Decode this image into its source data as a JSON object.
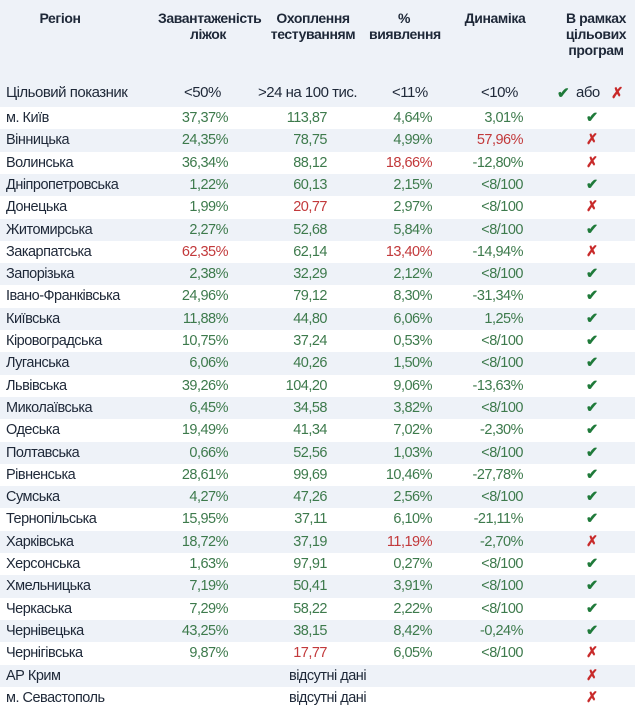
{
  "headers": [
    "Регіон",
    "Завантаженість ліжок",
    "Охоплення тестуванням",
    "% виявлення",
    "Динаміка",
    "В рамках цільових програм"
  ],
  "target": {
    "label": "Цільовий показник",
    "beds": "<50%",
    "testing": ">24 на 100 тис.",
    "detection": "<11%",
    "dynamics": "<10%",
    "or_label": "або",
    "check": "✔",
    "cross": "✗"
  },
  "colors": {
    "good": "#3d7a4c",
    "bad": "#c2393b",
    "check": "#1f7a3a",
    "cross": "#c82a2a",
    "stripe": "#eef2f8"
  },
  "missing_label": "відсутні дані",
  "rows": [
    {
      "region": "м. Київ",
      "beds": "37,37%",
      "testing": "113,87",
      "detection": "4,64%",
      "dynamics": "3,01%",
      "ok": true,
      "bad": []
    },
    {
      "region": "Вінницька",
      "beds": "24,35%",
      "testing": "78,75",
      "detection": "4,99%",
      "dynamics": "57,96%",
      "ok": false,
      "bad": [
        "dynamics"
      ]
    },
    {
      "region": "Волинська",
      "beds": "36,34%",
      "testing": "88,12",
      "detection": "18,66%",
      "dynamics": "-12,80%",
      "ok": false,
      "bad": [
        "detection"
      ]
    },
    {
      "region": "Дніпропетровська",
      "beds": "1,22%",
      "testing": "60,13",
      "detection": "2,15%",
      "dynamics": "<8/100",
      "ok": true,
      "bad": []
    },
    {
      "region": "Донецька",
      "beds": "1,99%",
      "testing": "20,77",
      "detection": "2,97%",
      "dynamics": "<8/100",
      "ok": false,
      "bad": [
        "testing"
      ]
    },
    {
      "region": "Житомирська",
      "beds": "2,27%",
      "testing": "52,68",
      "detection": "5,84%",
      "dynamics": "<8/100",
      "ok": true,
      "bad": []
    },
    {
      "region": "Закарпатська",
      "beds": "62,35%",
      "testing": "62,14",
      "detection": "13,40%",
      "dynamics": "-14,94%",
      "ok": false,
      "bad": [
        "beds",
        "detection"
      ]
    },
    {
      "region": "Запорізька",
      "beds": "2,38%",
      "testing": "32,29",
      "detection": "2,12%",
      "dynamics": "<8/100",
      "ok": true,
      "bad": []
    },
    {
      "region": "Івано-Франківська",
      "beds": "24,96%",
      "testing": "79,12",
      "detection": "8,30%",
      "dynamics": "-31,34%",
      "ok": true,
      "bad": []
    },
    {
      "region": "Київська",
      "beds": "11,88%",
      "testing": "44,80",
      "detection": "6,06%",
      "dynamics": "1,25%",
      "ok": true,
      "bad": []
    },
    {
      "region": "Кіровоградська",
      "beds": "10,75%",
      "testing": "37,24",
      "detection": "0,53%",
      "dynamics": "<8/100",
      "ok": true,
      "bad": []
    },
    {
      "region": "Луганська",
      "beds": "6,06%",
      "testing": "40,26",
      "detection": "1,50%",
      "dynamics": "<8/100",
      "ok": true,
      "bad": []
    },
    {
      "region": "Львівська",
      "beds": "39,26%",
      "testing": "104,20",
      "detection": "9,06%",
      "dynamics": "-13,63%",
      "ok": true,
      "bad": []
    },
    {
      "region": "Миколаївська",
      "beds": "6,45%",
      "testing": "34,58",
      "detection": "3,82%",
      "dynamics": "<8/100",
      "ok": true,
      "bad": []
    },
    {
      "region": "Одеська",
      "beds": "19,49%",
      "testing": "41,34",
      "detection": "7,02%",
      "dynamics": "-2,30%",
      "ok": true,
      "bad": []
    },
    {
      "region": "Полтавська",
      "beds": "0,66%",
      "testing": "52,56",
      "detection": "1,03%",
      "dynamics": "<8/100",
      "ok": true,
      "bad": []
    },
    {
      "region": "Рівненська",
      "beds": "28,61%",
      "testing": "99,69",
      "detection": "10,46%",
      "dynamics": "-27,78%",
      "ok": true,
      "bad": []
    },
    {
      "region": "Сумська",
      "beds": "4,27%",
      "testing": "47,26",
      "detection": "2,56%",
      "dynamics": "<8/100",
      "ok": true,
      "bad": []
    },
    {
      "region": "Тернопільська",
      "beds": "15,95%",
      "testing": "37,11",
      "detection": "6,10%",
      "dynamics": "-21,11%",
      "ok": true,
      "bad": []
    },
    {
      "region": "Харківська",
      "beds": "18,72%",
      "testing": "37,19",
      "detection": "11,19%",
      "dynamics": "-2,70%",
      "ok": false,
      "bad": [
        "detection"
      ]
    },
    {
      "region": "Херсонська",
      "beds": "1,63%",
      "testing": "97,91",
      "detection": "0,27%",
      "dynamics": "<8/100",
      "ok": true,
      "bad": []
    },
    {
      "region": "Хмельницька",
      "beds": "7,19%",
      "testing": "50,41",
      "detection": "3,91%",
      "dynamics": "<8/100",
      "ok": true,
      "bad": []
    },
    {
      "region": "Черкаська",
      "beds": "7,29%",
      "testing": "58,22",
      "detection": "2,22%",
      "dynamics": "<8/100",
      "ok": true,
      "bad": []
    },
    {
      "region": "Чернівецька",
      "beds": "43,25%",
      "testing": "38,15",
      "detection": "8,42%",
      "dynamics": "-0,24%",
      "ok": true,
      "bad": []
    },
    {
      "region": "Чернігівська",
      "beds": "9,87%",
      "testing": "17,77",
      "detection": "6,05%",
      "dynamics": "<8/100",
      "ok": false,
      "bad": [
        "testing"
      ]
    },
    {
      "region": "АР Крим",
      "missing": true,
      "ok": false
    },
    {
      "region": "м. Севастополь",
      "missing": true,
      "ok": false
    }
  ]
}
